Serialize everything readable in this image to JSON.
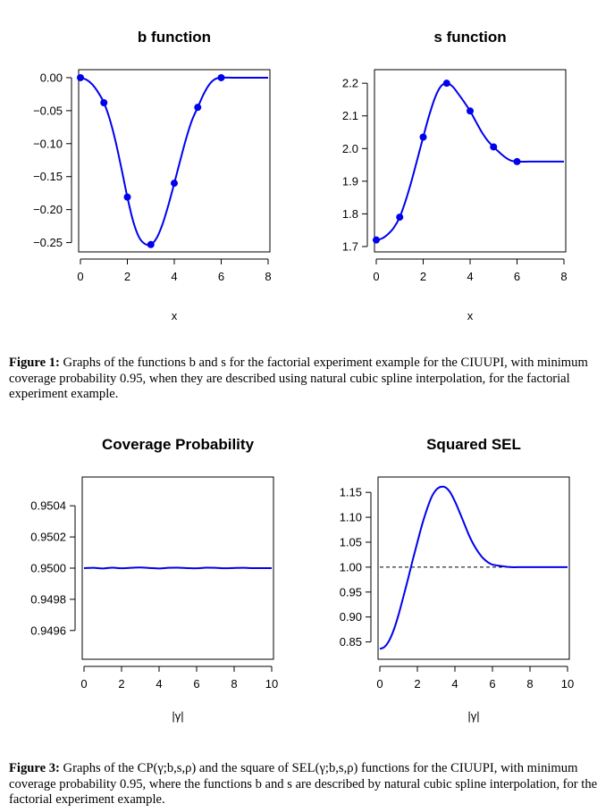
{
  "figure1": {
    "caption_label": "Figure 1:",
    "caption_text": "Graphs of the functions b and s for the factorial experiment example for the CIUUPI, with minimum coverage probability 0.95, when they are described using natural cubic spline interpolation, for the factorial experiment example."
  },
  "figure3": {
    "caption_label": "Figure 3:",
    "caption_text": "Graphs of the CP(γ;b,s,ρ) and the square of SEL(γ;b,s,ρ) functions for the CIUUPI, with minimum coverage probability 0.95, where the functions b and s are described by natural cubic spline interpolation, for the factorial experiment example."
  },
  "colors": {
    "curve": "#0000ee",
    "axis": "#000000",
    "reference": "#000000"
  },
  "chart_data": [
    {
      "id": "b",
      "type": "line",
      "title": "b function",
      "xlabel": "x",
      "ylabel": "",
      "xlim": [
        0,
        8
      ],
      "ylim": [
        -0.256,
        0.004
      ],
      "xticks": [
        0,
        2,
        4,
        6,
        8
      ],
      "xtick_labels": [
        "0",
        "2",
        "4",
        "6",
        "8"
      ],
      "yticks": [
        0.0,
        -0.05,
        -0.1,
        -0.15,
        -0.2,
        -0.25
      ],
      "ytick_labels": [
        "0.00",
        "−0.05",
        "−0.10",
        "−0.15",
        "−0.20",
        "−0.25"
      ],
      "points": {
        "x": [
          0,
          1,
          2,
          3,
          4,
          5,
          6
        ],
        "y": [
          0.0,
          -0.038,
          -0.181,
          -0.253,
          -0.16,
          -0.045,
          0.0
        ]
      },
      "curve": {
        "x": [
          0,
          0.25,
          0.5,
          0.75,
          1,
          1.25,
          1.5,
          1.75,
          2,
          2.25,
          2.5,
          2.75,
          3,
          3.25,
          3.5,
          3.75,
          4,
          4.25,
          4.5,
          4.75,
          5,
          5.25,
          5.5,
          5.75,
          6,
          6.5,
          7,
          7.5,
          8
        ],
        "y": [
          0.0,
          -0.003,
          -0.01,
          -0.022,
          -0.038,
          -0.063,
          -0.097,
          -0.138,
          -0.181,
          -0.218,
          -0.242,
          -0.252,
          -0.253,
          -0.243,
          -0.222,
          -0.193,
          -0.16,
          -0.126,
          -0.093,
          -0.065,
          -0.045,
          -0.025,
          -0.01,
          -0.002,
          0.0,
          0.0,
          0.0,
          0.0,
          0.0
        ]
      },
      "grid": false
    },
    {
      "id": "s",
      "type": "line",
      "title": "s function",
      "xlabel": "x",
      "ylabel": "",
      "xlim": [
        0,
        8
      ],
      "ylim": [
        1.7,
        2.225
      ],
      "xticks": [
        0,
        2,
        4,
        6,
        8
      ],
      "xtick_labels": [
        "0",
        "2",
        "4",
        "6",
        "8"
      ],
      "yticks": [
        1.7,
        1.8,
        1.9,
        2.0,
        2.1,
        2.2
      ],
      "ytick_labels": [
        "1.7",
        "1.8",
        "1.9",
        "2.0",
        "2.1",
        "2.2"
      ],
      "points": {
        "x": [
          0,
          1,
          2,
          3,
          4,
          5,
          6
        ],
        "y": [
          1.72,
          1.79,
          2.035,
          2.2,
          2.115,
          2.005,
          1.96
        ]
      },
      "curve": {
        "x": [
          0,
          0.25,
          0.5,
          0.75,
          1,
          1.25,
          1.5,
          1.75,
          2,
          2.25,
          2.5,
          2.75,
          3,
          3.25,
          3.5,
          3.75,
          4,
          4.25,
          4.5,
          4.75,
          5,
          5.25,
          5.5,
          5.75,
          6,
          6.5,
          7,
          7.5,
          8
        ],
        "y": [
          1.72,
          1.725,
          1.738,
          1.758,
          1.79,
          1.84,
          1.9,
          1.967,
          2.035,
          2.1,
          2.155,
          2.19,
          2.2,
          2.19,
          2.167,
          2.142,
          2.115,
          2.082,
          2.05,
          2.024,
          2.005,
          1.988,
          1.973,
          1.963,
          1.96,
          1.96,
          1.96,
          1.96,
          1.96
        ]
      },
      "grid": false
    },
    {
      "id": "cp",
      "type": "line",
      "title": "Coverage Probability",
      "xlabel": "|γ|",
      "ylabel": "",
      "xlim": [
        0,
        10
      ],
      "ylim": [
        0.94945,
        0.95055
      ],
      "xticks": [
        0,
        2,
        4,
        6,
        8,
        10
      ],
      "xtick_labels": [
        "0",
        "2",
        "4",
        "6",
        "8",
        "10"
      ],
      "yticks": [
        0.9496,
        0.9498,
        0.95,
        0.9502,
        0.9504
      ],
      "ytick_labels": [
        "0.9496",
        "0.9498",
        "0.9500",
        "0.9502",
        "0.9504"
      ],
      "curve": {
        "x": [
          0,
          0.5,
          1,
          1.5,
          2,
          2.5,
          3,
          3.5,
          4,
          4.5,
          5,
          5.5,
          6,
          6.5,
          7,
          7.5,
          8,
          8.5,
          9,
          9.5,
          10
        ],
        "y": [
          0.95,
          0.950002,
          0.949998,
          0.950003,
          0.949999,
          0.950002,
          0.950004,
          0.950001,
          0.949998,
          0.950002,
          0.950003,
          0.95,
          0.949999,
          0.950003,
          0.950002,
          0.949999,
          0.950001,
          0.950002,
          0.95,
          0.95,
          0.95
        ]
      },
      "grid": false
    },
    {
      "id": "sel",
      "type": "line",
      "title": "Squared SEL",
      "xlabel": "|γ|",
      "ylabel": "",
      "xlim": [
        0,
        10
      ],
      "ylim": [
        0.826,
        1.17
      ],
      "xticks": [
        0,
        2,
        4,
        6,
        8,
        10
      ],
      "xtick_labels": [
        "0",
        "2",
        "4",
        "6",
        "8",
        "10"
      ],
      "yticks": [
        0.85,
        0.9,
        0.95,
        1.0,
        1.05,
        1.1,
        1.15
      ],
      "ytick_labels": [
        "0.85",
        "0.90",
        "0.95",
        "1.00",
        "1.05",
        "1.10",
        "1.15"
      ],
      "reference_line": {
        "y": 1.0,
        "style": "dashed"
      },
      "curve": {
        "x": [
          0,
          0.25,
          0.5,
          0.75,
          1,
          1.25,
          1.5,
          1.75,
          2,
          2.25,
          2.5,
          2.75,
          3,
          3.25,
          3.5,
          3.75,
          4,
          4.25,
          4.5,
          4.75,
          5,
          5.25,
          5.5,
          5.75,
          6,
          6.5,
          7,
          7.5,
          8,
          8.5,
          9,
          10
        ],
        "y": [
          0.836,
          0.84,
          0.853,
          0.875,
          0.905,
          0.94,
          0.976,
          1.014,
          1.05,
          1.085,
          1.115,
          1.14,
          1.155,
          1.161,
          1.16,
          1.15,
          1.132,
          1.11,
          1.087,
          1.064,
          1.045,
          1.03,
          1.018,
          1.01,
          1.005,
          1.002,
          1.0,
          1.0,
          1.0,
          1.0,
          1.0,
          1.0
        ]
      },
      "grid": false
    }
  ]
}
